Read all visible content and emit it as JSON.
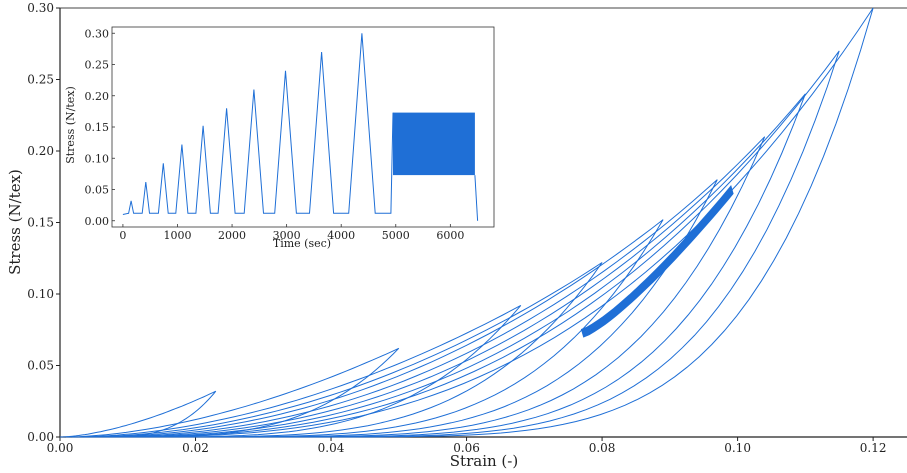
{
  "chart_data": [
    {
      "id": "main",
      "type": "line",
      "title": "",
      "xlabel": "Strain (-)",
      "ylabel": "Stress (N/tex)",
      "xlim": [
        0.0,
        0.125
      ],
      "ylim": [
        0.0,
        0.3
      ],
      "xticks": [
        "0.00",
        "0.02",
        "0.04",
        "0.06",
        "0.08",
        "0.10",
        "0.12"
      ],
      "yticks": [
        "0.00",
        "0.05",
        "0.10",
        "0.15",
        "0.20",
        "0.25",
        "0.30"
      ],
      "grid": false,
      "series_color": "#1f6fd6",
      "loading_cycles": [
        {
          "peak_strain": 0.023,
          "peak_stress": 0.032
        },
        {
          "peak_strain": 0.05,
          "peak_stress": 0.062
        },
        {
          "peak_strain": 0.068,
          "peak_stress": 0.092
        },
        {
          "peak_strain": 0.08,
          "peak_stress": 0.122
        },
        {
          "peak_strain": 0.089,
          "peak_stress": 0.152
        },
        {
          "peak_strain": 0.097,
          "peak_stress": 0.18
        },
        {
          "peak_strain": 0.104,
          "peak_stress": 0.21
        },
        {
          "peak_strain": 0.11,
          "peak_stress": 0.24
        },
        {
          "peak_strain": 0.115,
          "peak_stress": 0.27
        },
        {
          "peak_strain": 0.12,
          "peak_stress": 0.3
        }
      ],
      "fatigue_band": {
        "strain_range": [
          0.077,
          0.099
        ],
        "stress_range": [
          0.073,
          0.173
        ]
      }
    },
    {
      "id": "inset",
      "type": "line",
      "title": "",
      "xlabel": "Time (sec)",
      "ylabel": "Stress (N/tex)",
      "xlim": [
        -200,
        6800
      ],
      "ylim": [
        -0.01,
        0.31
      ],
      "xticks": [
        "0",
        "1000",
        "2000",
        "3000",
        "4000",
        "5000",
        "6000"
      ],
      "yticks": [
        "0.00",
        "0.05",
        "0.10",
        "0.15",
        "0.20",
        "0.25",
        "0.30"
      ],
      "grid": false,
      "series_color": "#1f6fd6",
      "peaks": [
        {
          "time": 150,
          "stress": 0.032
        },
        {
          "time": 420,
          "stress": 0.062
        },
        {
          "time": 740,
          "stress": 0.092
        },
        {
          "time": 1080,
          "stress": 0.122
        },
        {
          "time": 1470,
          "stress": 0.152
        },
        {
          "time": 1900,
          "stress": 0.18
        },
        {
          "time": 2400,
          "stress": 0.21
        },
        {
          "time": 2980,
          "stress": 0.24
        },
        {
          "time": 3640,
          "stress": 0.27
        },
        {
          "time": 4380,
          "stress": 0.3
        }
      ],
      "fatigue_block": {
        "time_range": [
          4950,
          6450
        ],
        "stress_range": [
          0.073,
          0.173
        ]
      },
      "end_time": 6500
    }
  ]
}
